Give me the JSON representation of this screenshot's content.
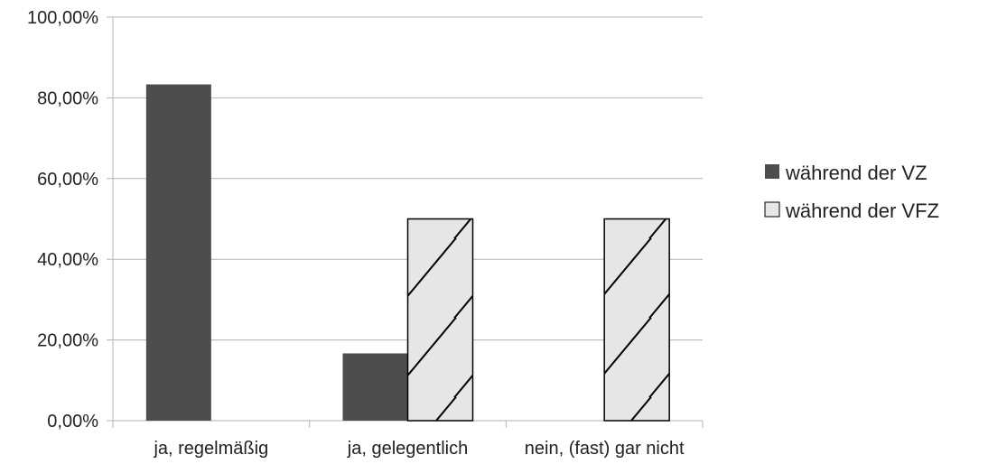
{
  "chart_data": {
    "type": "bar",
    "title": "",
    "xlabel": "",
    "ylabel": "",
    "categories": [
      "ja, regelmäßig",
      "ja, gelegentlich",
      "nein, (fast) gar nicht"
    ],
    "series": [
      {
        "name": "während der VZ",
        "values": [
          83.33,
          16.67,
          0
        ],
        "color": "#4d4d4d",
        "pattern": "solid"
      },
      {
        "name": "während der VFZ",
        "values": [
          0,
          50,
          50
        ],
        "color": "#e6e6e6",
        "pattern": "hatched"
      }
    ],
    "ylim": [
      0,
      100
    ],
    "yticks": [
      0,
      20,
      40,
      60,
      80,
      100
    ],
    "ytick_labels": [
      "0,00%",
      "20,00%",
      "40,00%",
      "60,00%",
      "80,00%",
      "100,00%"
    ],
    "grid": true,
    "legend_position": "right"
  }
}
